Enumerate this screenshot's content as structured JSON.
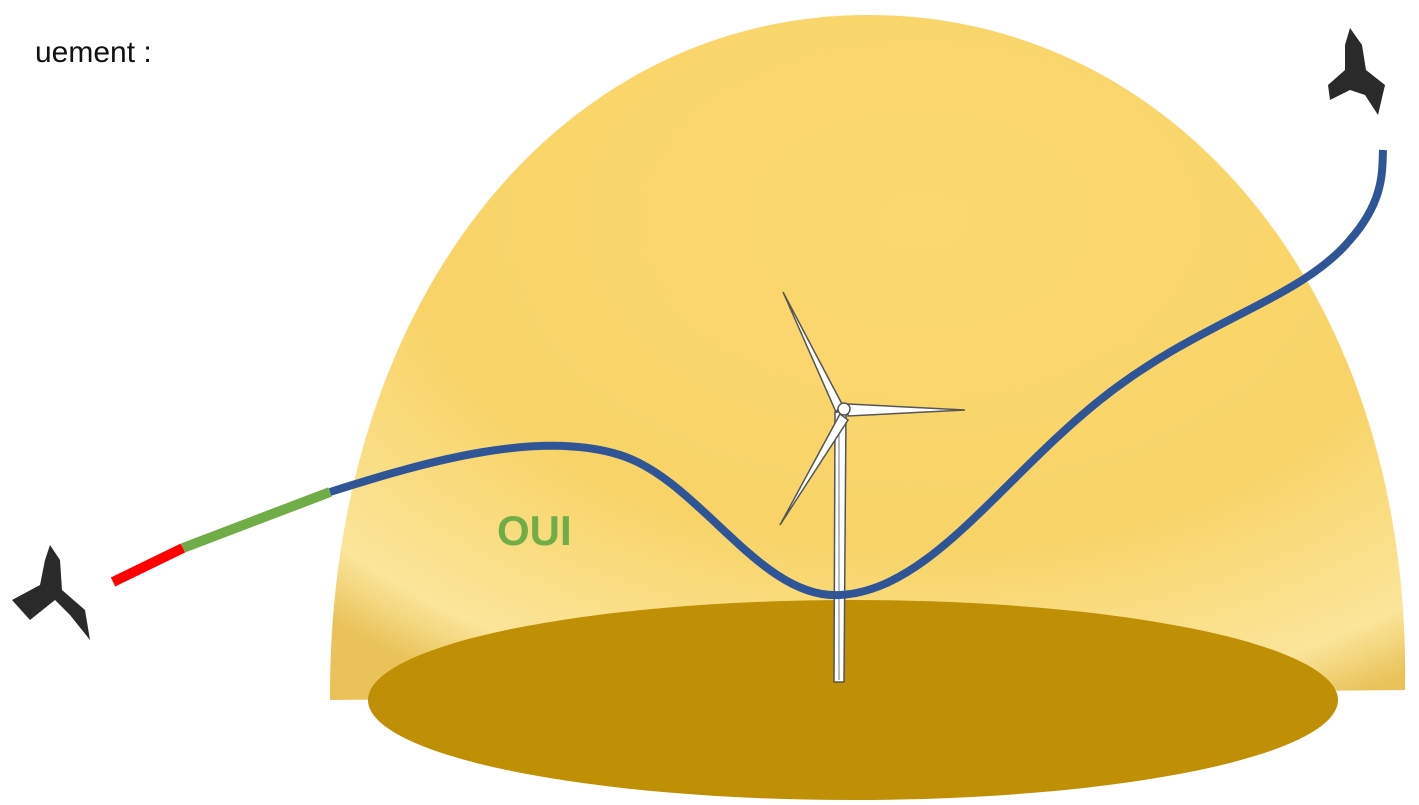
{
  "caption": "uement :",
  "label": "OUI"
}
